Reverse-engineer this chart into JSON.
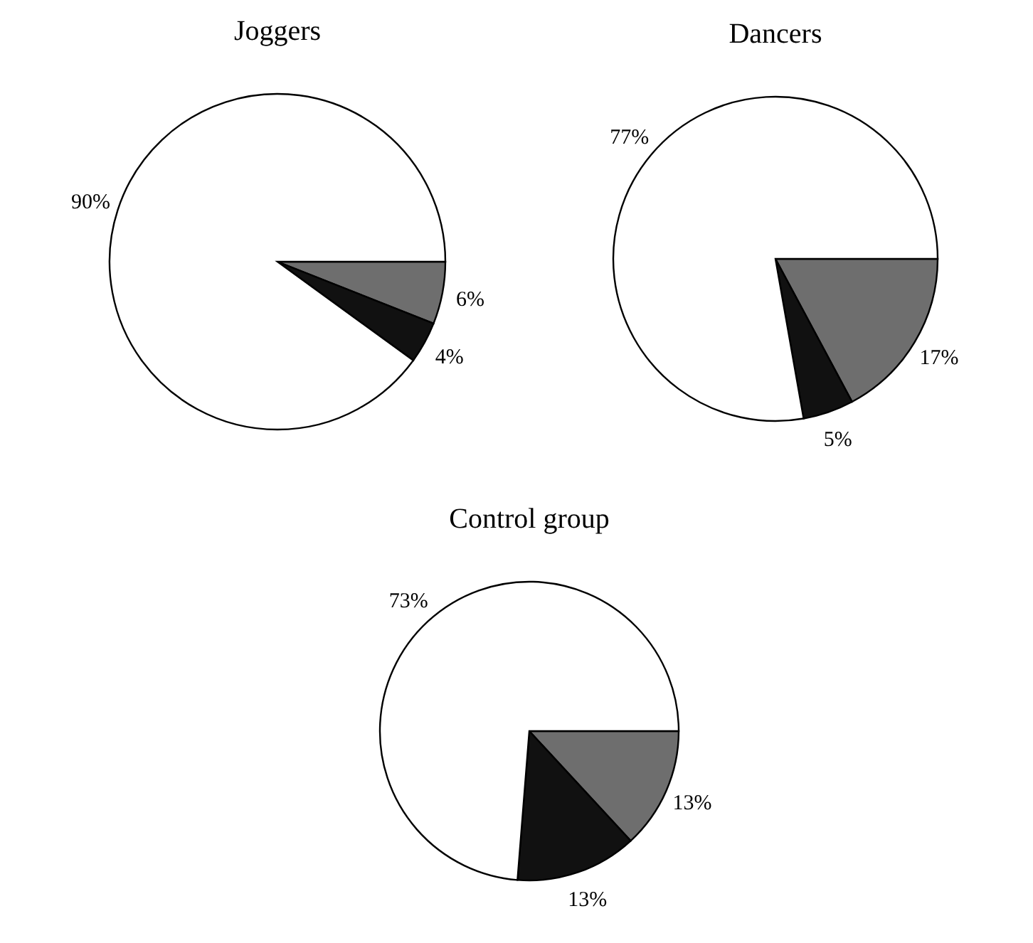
{
  "chart_data": [
    {
      "type": "pie",
      "title": "Joggers",
      "categories": [
        null,
        null,
        null
      ],
      "values": [
        6,
        4,
        90
      ],
      "colors": [
        "#6e6e6e",
        "#111111",
        "#ffffff"
      ],
      "value_labels": [
        "6%",
        "4%",
        "90%"
      ]
    },
    {
      "type": "pie",
      "title": "Dancers",
      "categories": [
        null,
        null,
        null
      ],
      "values": [
        17,
        5,
        77
      ],
      "colors": [
        "#6e6e6e",
        "#111111",
        "#ffffff"
      ],
      "value_labels": [
        "17%",
        "5%",
        "77%"
      ]
    },
    {
      "type": "pie",
      "title": "Control group",
      "categories": [
        null,
        null,
        null
      ],
      "values": [
        13,
        13,
        73
      ],
      "colors": [
        "#6e6e6e",
        "#111111",
        "#ffffff"
      ],
      "value_labels": [
        "13%",
        "13%",
        "73%"
      ]
    }
  ]
}
